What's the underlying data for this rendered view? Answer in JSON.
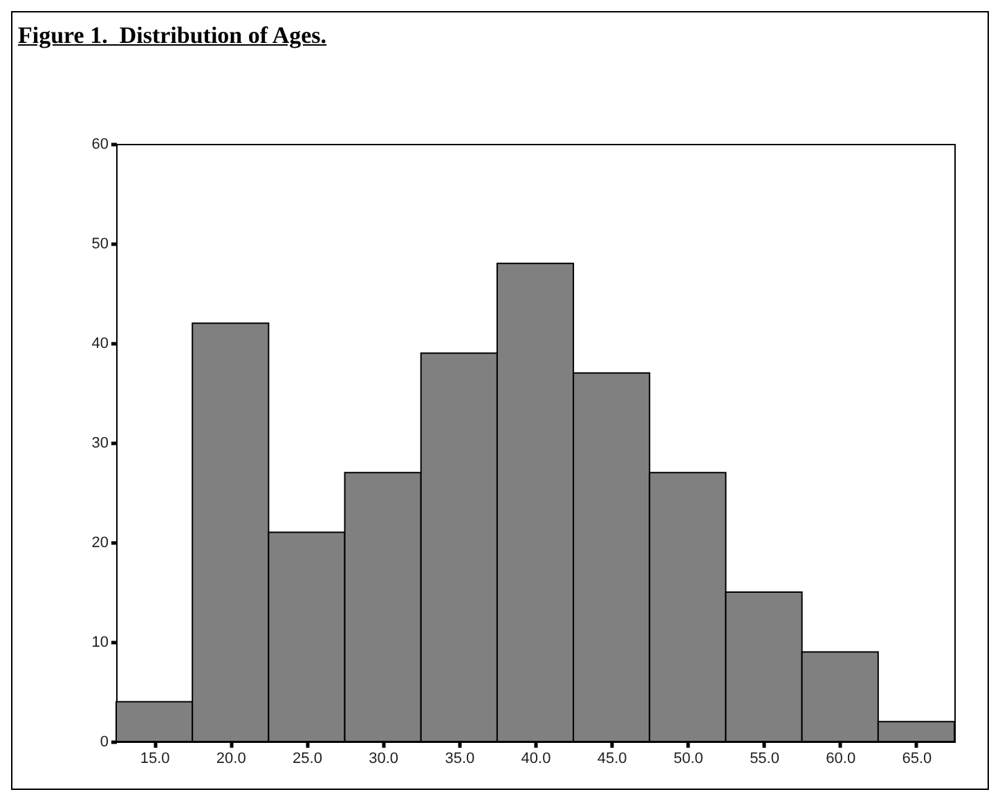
{
  "chart_data": {
    "type": "histogram",
    "title": "Figure 1.  Distribution of Ages.",
    "bins": [
      12.5,
      17.5,
      22.5,
      27.5,
      32.5,
      37.5,
      42.5,
      47.5,
      52.5,
      57.5,
      62.5,
      67.5
    ],
    "values": [
      4,
      42,
      21,
      27,
      39,
      48,
      37,
      27,
      15,
      9,
      2
    ],
    "color": "#808080",
    "xlim": [
      12.5,
      67.5
    ],
    "xticks": [
      {
        "value": 15,
        "label": "15.0"
      },
      {
        "value": 20,
        "label": "20.0"
      },
      {
        "value": 25,
        "label": "25.0"
      },
      {
        "value": 30,
        "label": "30.0"
      },
      {
        "value": 35,
        "label": "35.0"
      },
      {
        "value": 40,
        "label": "40.0"
      },
      {
        "value": 45,
        "label": "45.0"
      },
      {
        "value": 50,
        "label": "50.0"
      },
      {
        "value": 55,
        "label": "55.0"
      },
      {
        "value": 60,
        "label": "60.0"
      },
      {
        "value": 65,
        "label": "65.0"
      }
    ],
    "ylim": [
      0,
      60
    ],
    "yticks": [
      0,
      10,
      20,
      30,
      40,
      50,
      60
    ]
  }
}
